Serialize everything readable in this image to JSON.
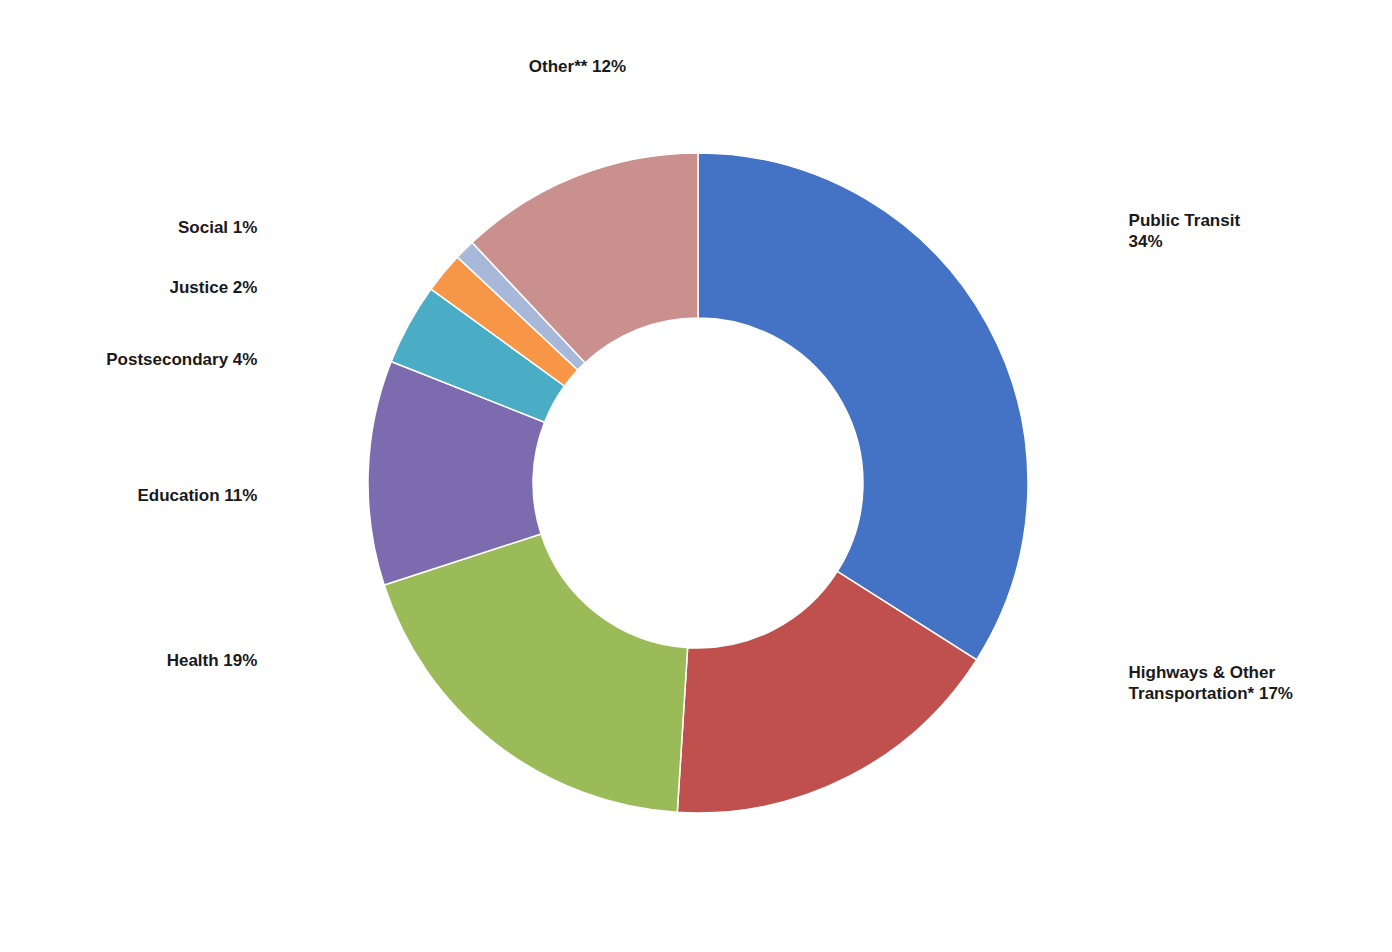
{
  "chart_data": {
    "type": "donut",
    "categories": [
      "Public Transit\n34%",
      "Highways & Other\nTransportation* 17%",
      "Health 19%",
      "Education 11%",
      "Postsecondary 4%",
      "Justice 2%",
      "Social 1%",
      "Other** 12%"
    ],
    "values": [
      34,
      17,
      19,
      11,
      4,
      2,
      1,
      12
    ],
    "colors": [
      "#4472C4",
      "#C0504D",
      "#9BBB59",
      "#7C6BAE",
      "#4BACC6",
      "#F79646",
      "#A8B8D8",
      "#C9908E"
    ]
  }
}
